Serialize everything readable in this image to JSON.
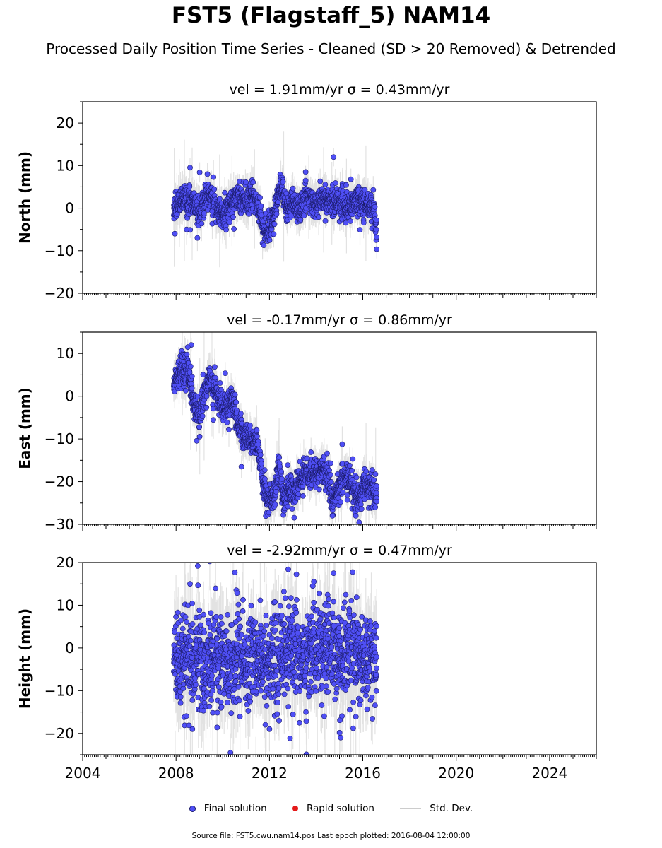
{
  "title": "FST5 (Flagstaff_5) NAM14",
  "subtitle": "Processed Daily Position Time Series - Cleaned (SD > 20 Removed) & Detrended",
  "legend": {
    "final": "Final solution",
    "rapid": "Rapid solution",
    "std": "Std. Dev."
  },
  "footer": "Source file: FST5.cwu.nam14.pos  Last epoch plotted: 2016-08-04 12:00:00",
  "colors": {
    "final_fill": "#4f4ff5",
    "final_edge": "#1b1b6a",
    "rapid": "#e41a1a",
    "std": "#cccccc"
  },
  "chart_data": [
    {
      "type": "scatter",
      "component": "North",
      "title": "vel = 1.91mm/yr   σ = 0.43mm/yr",
      "ylabel": "North (mm)",
      "xlim": [
        2004,
        2026
      ],
      "ylim": [
        -20,
        25
      ],
      "yticks": [
        -20,
        -10,
        0,
        10,
        20
      ],
      "xticks": [
        2004,
        2008,
        2012,
        2016,
        2020,
        2024
      ],
      "data_range": [
        2007.9,
        2016.6
      ],
      "trace": [
        [
          2007.9,
          0
        ],
        [
          2008.3,
          2
        ],
        [
          2008.7,
          1
        ],
        [
          2009.0,
          -1
        ],
        [
          2009.3,
          3
        ],
        [
          2009.6,
          2
        ],
        [
          2010.0,
          -2
        ],
        [
          2010.3,
          1
        ],
        [
          2010.6,
          3
        ],
        [
          2011.0,
          1
        ],
        [
          2011.3,
          3
        ],
        [
          2011.6,
          -1
        ],
        [
          2011.8,
          -6
        ],
        [
          2012.0,
          -4
        ],
        [
          2012.3,
          0
        ],
        [
          2012.5,
          6
        ],
        [
          2012.7,
          0
        ],
        [
          2013.0,
          1
        ],
        [
          2013.3,
          0
        ],
        [
          2013.6,
          3
        ],
        [
          2014.0,
          1
        ],
        [
          2014.3,
          2
        ],
        [
          2014.6,
          1
        ],
        [
          2015.0,
          2
        ],
        [
          2015.4,
          0
        ],
        [
          2015.8,
          2
        ],
        [
          2016.2,
          1
        ],
        [
          2016.5,
          -2
        ],
        [
          2016.6,
          -7
        ]
      ],
      "jitter": 1.6,
      "sd": 2.8,
      "outlier_rate": 0.03,
      "outliers": [
        [
          2014.75,
          12
        ],
        [
          2008.6,
          9.5
        ],
        [
          2008.45,
          -5
        ],
        [
          2013.55,
          8.5
        ],
        [
          2007.95,
          -6
        ]
      ]
    },
    {
      "type": "scatter",
      "component": "East",
      "title": "vel = -0.17mm/yr   σ = 0.86mm/yr",
      "ylabel": "East (mm)",
      "xlim": [
        2004,
        2026
      ],
      "ylim": [
        -30,
        15
      ],
      "yticks": [
        -30,
        -20,
        -10,
        0,
        10
      ],
      "xticks": [
        2004,
        2008,
        2012,
        2016,
        2020,
        2024
      ],
      "data_range": [
        2007.9,
        2016.6
      ],
      "trace": [
        [
          2007.9,
          3
        ],
        [
          2008.3,
          7
        ],
        [
          2008.5,
          6
        ],
        [
          2008.8,
          -3
        ],
        [
          2009.0,
          -5
        ],
        [
          2009.2,
          0
        ],
        [
          2009.4,
          5
        ],
        [
          2009.6,
          2
        ],
        [
          2009.9,
          -2
        ],
        [
          2010.2,
          -3
        ],
        [
          2010.4,
          0
        ],
        [
          2010.6,
          -6
        ],
        [
          2010.9,
          -9
        ],
        [
          2011.2,
          -10
        ],
        [
          2011.5,
          -11
        ],
        [
          2011.7,
          -19
        ],
        [
          2011.9,
          -24
        ],
        [
          2012.2,
          -23
        ],
        [
          2012.4,
          -16
        ],
        [
          2012.6,
          -24
        ],
        [
          2012.9,
          -22
        ],
        [
          2013.2,
          -21
        ],
        [
          2013.5,
          -18
        ],
        [
          2013.8,
          -18
        ],
        [
          2014.2,
          -17
        ],
        [
          2014.5,
          -19
        ],
        [
          2014.7,
          -25
        ],
        [
          2015.0,
          -21
        ],
        [
          2015.3,
          -19
        ],
        [
          2015.6,
          -22
        ],
        [
          2015.8,
          -24
        ],
        [
          2016.0,
          -21
        ],
        [
          2016.3,
          -21
        ],
        [
          2016.6,
          -23
        ]
      ],
      "jitter": 1.7,
      "sd": 2.8,
      "outlier_rate": 0.03,
      "outliers": [
        [
          2008.65,
          12
        ],
        [
          2008.5,
          11.5
        ],
        [
          2010.8,
          -16.5
        ],
        [
          2014.7,
          -28
        ],
        [
          2015.7,
          -28
        ]
      ]
    },
    {
      "type": "scatter",
      "component": "Height",
      "title": "vel = -2.92mm/yr   σ = 0.47mm/yr",
      "ylabel": "Height (mm)",
      "xlim": [
        2004,
        2026
      ],
      "ylim": [
        -25,
        20
      ],
      "yticks": [
        -20,
        -10,
        0,
        10,
        20
      ],
      "xticks": [
        2004,
        2008,
        2012,
        2016,
        2020,
        2024
      ],
      "data_range": [
        2007.9,
        2016.6
      ],
      "trace": [
        [
          2007.9,
          -4
        ],
        [
          2008.5,
          -2
        ],
        [
          2009.0,
          -4
        ],
        [
          2009.5,
          -3
        ],
        [
          2010.0,
          -3
        ],
        [
          2010.5,
          -2
        ],
        [
          2011.0,
          -3
        ],
        [
          2011.5,
          -2
        ],
        [
          2012.0,
          -3
        ],
        [
          2012.5,
          -1
        ],
        [
          2013.0,
          -1
        ],
        [
          2013.5,
          -2
        ],
        [
          2014.0,
          0
        ],
        [
          2014.5,
          0
        ],
        [
          2015.0,
          -1
        ],
        [
          2015.5,
          0
        ],
        [
          2016.0,
          -2
        ],
        [
          2016.6,
          -2
        ]
      ],
      "jitter": 5.2,
      "sd": 6.5,
      "outlier_rate": 0.05,
      "outliers": [
        [
          2014.75,
          17.5
        ],
        [
          2013.9,
          15.5
        ],
        [
          2008.6,
          15
        ],
        [
          2015.05,
          -21
        ],
        [
          2012.0,
          -19
        ],
        [
          2008.7,
          -19
        ]
      ]
    }
  ]
}
